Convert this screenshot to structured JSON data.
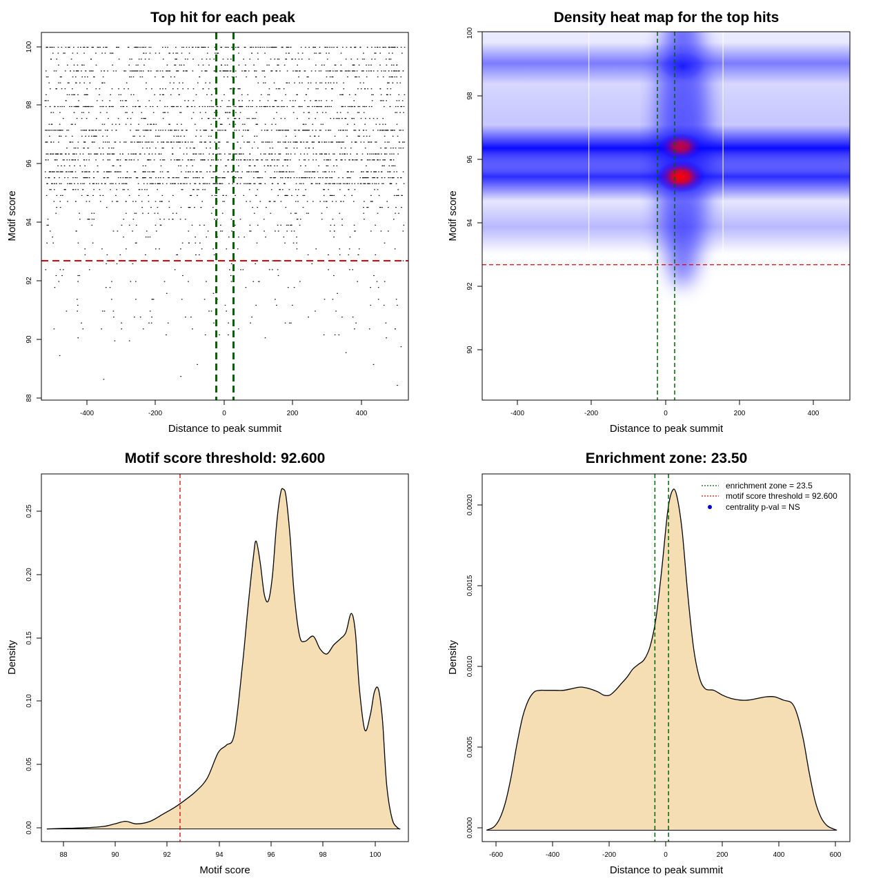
{
  "chart_data": [
    {
      "id": "scatter",
      "type": "scatter",
      "title": "Top hit for each peak",
      "xlabel": "Distance to peak summit",
      "ylabel": "Motif score",
      "xlim": [
        -500,
        500
      ],
      "ylim": [
        87.9,
        100.3
      ],
      "xticks": [
        "-400",
        "-200",
        "0",
        "200",
        "400"
      ],
      "yticks": [
        "88",
        "90",
        "92",
        "94",
        "96",
        "98",
        "100"
      ],
      "threshold_y": 92.6,
      "enrichment_zone_x": [
        -23.5,
        23.5
      ],
      "marker_color": "#000000",
      "threshold_color": "#dd0000",
      "zone_color": "#006400",
      "note": "Several thousand points spread uniformly across x in [-500, 500]; dense rows at recurring motif scores between 92.6 and 99.8, sparse points below the threshold.",
      "score_rows": [
        99.8,
        99.0,
        98.5,
        97.8,
        97.0,
        96.6,
        96.2,
        96.0,
        95.6,
        95.4,
        95.2
      ],
      "sparse_points": [
        {
          "x": -330,
          "y": 88.6
        },
        {
          "x": -120,
          "y": 88.7
        },
        {
          "x": 470,
          "y": 88.4
        },
        {
          "x": 405,
          "y": 89.1
        },
        {
          "x": -450,
          "y": 89.4
        },
        {
          "x": -75,
          "y": 89.1
        },
        {
          "x": 330,
          "y": 89.5
        },
        {
          "x": 480,
          "y": 89.7
        },
        {
          "x": -400,
          "y": 90.0
        },
        {
          "x": -300,
          "y": 89.9
        },
        {
          "x": -260,
          "y": 89.9
        },
        {
          "x": -160,
          "y": 90.1
        },
        {
          "x": 110,
          "y": 90.0
        },
        {
          "x": 300,
          "y": 90.1
        },
        {
          "x": 440,
          "y": 90.0
        }
      ]
    },
    {
      "id": "heatmap",
      "type": "heatmap",
      "title": "Density heat map for the top hits",
      "xlabel": "Distance to peak summit",
      "ylabel": "Motif score",
      "xlim": [
        -500,
        500
      ],
      "ylim": [
        88.3,
        100.0
      ],
      "xticks": [
        "-400",
        "-200",
        "0",
        "200",
        "400"
      ],
      "yticks": [
        "90",
        "92",
        "94",
        "96",
        "98",
        "100"
      ],
      "threshold_y": 92.6,
      "enrichment_zone_x": [
        -23.5,
        23.5
      ],
      "colors": [
        "#ffffff",
        "#0000ff",
        "#ff0000"
      ],
      "threshold_color": "#dd0000",
      "zone_color": "#006400",
      "band_scores": [
        99.0,
        96.3,
        95.4
      ],
      "hotspots": [
        {
          "x": 40,
          "y": 95.4,
          "intensity": 1.0
        },
        {
          "x": 40,
          "y": 96.35,
          "intensity": 0.6
        },
        {
          "x": 45,
          "y": 98.9,
          "intensity": 0.3
        }
      ],
      "light_columns_x": [
        -210,
        155
      ]
    },
    {
      "id": "score-density",
      "type": "area",
      "title": "Motif score threshold: 92.600",
      "xlabel": "Motif score",
      "ylabel": "Density",
      "xlim": [
        87.5,
        101.0
      ],
      "ylim": [
        -0.01,
        0.28
      ],
      "xticks": [
        "88",
        "90",
        "92",
        "94",
        "96",
        "98",
        "100"
      ],
      "yticks": [
        "0.00",
        "0.05",
        "0.10",
        "0.15",
        "0.20",
        "0.25"
      ],
      "threshold_x": 92.6,
      "fill_color": "#f5deb3",
      "threshold_color": "#dd0000",
      "x": [
        87.7,
        88.5,
        89.2,
        89.8,
        90.2,
        90.6,
        91.0,
        91.5,
        92.0,
        92.4,
        92.8,
        93.2,
        93.6,
        94.0,
        94.3,
        94.6,
        94.9,
        95.1,
        95.3,
        95.4,
        95.55,
        95.7,
        95.85,
        96.0,
        96.15,
        96.3,
        96.4,
        96.5,
        96.65,
        96.8,
        97.0,
        97.2,
        97.5,
        97.75,
        98.0,
        98.25,
        98.5,
        98.7,
        98.9,
        99.05,
        99.2,
        99.4,
        99.6,
        99.75,
        99.9,
        100.05,
        100.2,
        100.4,
        100.6,
        100.7
      ],
      "y": [
        0.0,
        0.0005,
        0.001,
        0.002,
        0.004,
        0.006,
        0.004,
        0.006,
        0.012,
        0.017,
        0.023,
        0.03,
        0.04,
        0.06,
        0.066,
        0.075,
        0.13,
        0.175,
        0.215,
        0.227,
        0.21,
        0.185,
        0.18,
        0.2,
        0.24,
        0.265,
        0.268,
        0.262,
        0.23,
        0.185,
        0.152,
        0.148,
        0.152,
        0.142,
        0.138,
        0.145,
        0.15,
        0.155,
        0.17,
        0.155,
        0.11,
        0.078,
        0.09,
        0.108,
        0.11,
        0.085,
        0.035,
        0.008,
        0.001,
        0.0
      ]
    },
    {
      "id": "distance-density",
      "type": "area",
      "title": "Enrichment zone: 23.50",
      "xlabel": "Distance to peak summit",
      "ylabel": "Density",
      "xlim": [
        -620,
        650
      ],
      "ylim": [
        -7e-05,
        0.00219
      ],
      "xticks": [
        "-600",
        "-400",
        "-200",
        "0",
        "200",
        "400",
        "600"
      ],
      "yticks": [
        "0.0000",
        "0.0005",
        "0.0010",
        "0.0015",
        "0.0020"
      ],
      "enrichment_zone_x": [
        -23.5,
        23.5
      ],
      "fill_color": "#f5deb3",
      "zone_color": "#006400",
      "x": [
        -605,
        -580,
        -560,
        -540,
        -520,
        -500,
        -480,
        -460,
        -440,
        -420,
        -400,
        -370,
        -340,
        -310,
        -280,
        -250,
        -220,
        -200,
        -180,
        -160,
        -140,
        -120,
        -100,
        -80,
        -60,
        -40,
        -20,
        0,
        20,
        35,
        50,
        70,
        90,
        110,
        130,
        150,
        180,
        210,
        240,
        270,
        300,
        330,
        360,
        390,
        420,
        450,
        470,
        490,
        510,
        530,
        550,
        570,
        590,
        605
      ],
      "y": [
        0.0,
        2e-05,
        7e-05,
        0.00017,
        0.00033,
        0.00053,
        0.0007,
        0.0008,
        0.00085,
        0.00086,
        0.00086,
        0.00086,
        0.00086,
        0.00087,
        0.00088,
        0.00087,
        0.00085,
        0.00083,
        0.00083,
        0.00086,
        0.0009,
        0.00094,
        0.00099,
        0.00102,
        0.00105,
        0.00113,
        0.0013,
        0.0016,
        0.00195,
        0.00208,
        0.00207,
        0.00185,
        0.00145,
        0.00112,
        0.00094,
        0.00087,
        0.00086,
        0.00083,
        0.00081,
        0.0008,
        0.0008,
        0.00081,
        0.00082,
        0.00082,
        0.0008,
        0.00078,
        0.0007,
        0.00055,
        0.00035,
        0.00018,
        8e-05,
        3e-05,
        1e-05,
        0.0
      ],
      "legend_position": "top-right",
      "legend": [
        {
          "label": "enrichment zone = 23.5",
          "style": "dotted-line",
          "color": "#006400"
        },
        {
          "label": "motif score threshold = 92.600",
          "style": "dotted-line",
          "color": "#dd0000"
        },
        {
          "label": "centrality p-val = NS",
          "style": "point",
          "color": "#0000cd"
        }
      ]
    }
  ]
}
